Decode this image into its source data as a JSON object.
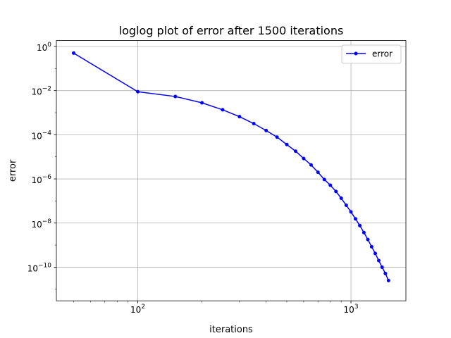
{
  "chart_data": {
    "type": "line",
    "title": "loglog plot of error after 1500 iterations",
    "xlabel": "iterations",
    "ylabel": "error",
    "xscale": "log",
    "yscale": "log",
    "grid": true,
    "legend_position": "top-right",
    "xlim": [
      41.5,
      1810
    ],
    "ylim": [
      3e-12,
      1.85
    ],
    "x_ticks": [
      {
        "value": 100,
        "base": "10",
        "exp": "2"
      },
      {
        "value": 1000,
        "base": "10",
        "exp": "3"
      }
    ],
    "y_ticks": [
      {
        "value": 1,
        "base": "10",
        "exp": "0"
      },
      {
        "value": 0.01,
        "base": "10",
        "exp": "−2"
      },
      {
        "value": 0.0001,
        "base": "10",
        "exp": "−4"
      },
      {
        "value": 1e-06,
        "base": "10",
        "exp": "−6"
      },
      {
        "value": 1e-08,
        "base": "10",
        "exp": "−8"
      },
      {
        "value": 1e-10,
        "base": "10",
        "exp": "−10"
      }
    ],
    "series": [
      {
        "name": "error",
        "color": "#0000ff",
        "marker": "circle",
        "x": [
          50,
          100,
          150,
          200,
          250,
          300,
          350,
          400,
          450,
          500,
          550,
          600,
          650,
          700,
          750,
          800,
          850,
          900,
          950,
          1000,
          1050,
          1100,
          1150,
          1200,
          1250,
          1300,
          1350,
          1400,
          1450,
          1500
        ],
        "y": [
          0.5,
          0.0089,
          0.0054,
          0.0028,
          0.00135,
          0.00066,
          0.00032,
          0.000155,
          7.8e-05,
          3.6e-05,
          1.8e-05,
          8.4e-06,
          4.3e-06,
          2e-06,
          9.4e-07,
          5.2e-07,
          2.7e-07,
          1.33e-07,
          6.4e-08,
          3.2e-08,
          1.55e-08,
          7.7e-09,
          3.7e-09,
          1.8e-09,
          8.5e-10,
          4.2e-10,
          2e-10,
          1e-10,
          5.2e-11,
          2.5e-11
        ]
      }
    ]
  }
}
